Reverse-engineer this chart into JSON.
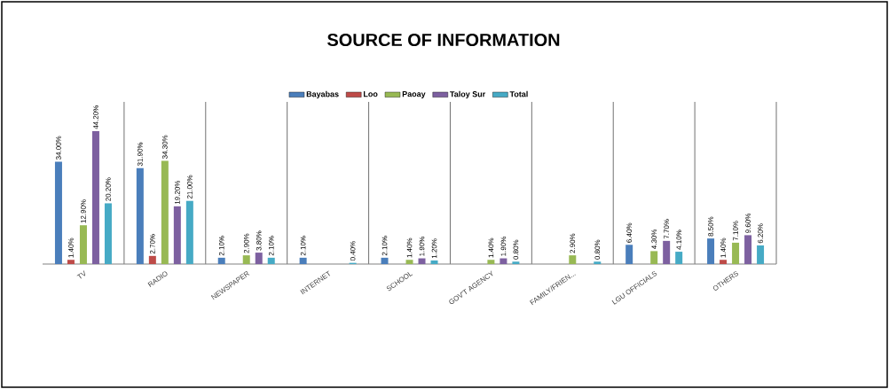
{
  "chart_data": {
    "type": "bar",
    "title": "SOURCE OF INFORMATION",
    "categories": [
      "TV",
      "RADIO",
      "NEWSPAPER",
      "INTERNET",
      "SCHOOL",
      "GOV'T AGENCY",
      "FAMILY/FRIEN...",
      "LGU OFFICIALS",
      "OTHERS"
    ],
    "series": [
      {
        "name": "Bayabas",
        "color": "#4a7ebb",
        "values": [
          34.0,
          31.9,
          2.1,
          2.1,
          2.1,
          null,
          null,
          6.4,
          8.5
        ],
        "value_labels": [
          "34.00%",
          "31.90%",
          "2.10%",
          "2.10%",
          "2.10%",
          null,
          null,
          "6.40%",
          "8.50%"
        ]
      },
      {
        "name": "Loo",
        "color": "#be4b48",
        "values": [
          1.4,
          2.7,
          null,
          null,
          null,
          null,
          null,
          null,
          1.4
        ],
        "value_labels": [
          "1.40%",
          "2.70%",
          null,
          null,
          null,
          null,
          null,
          null,
          "1.40%"
        ]
      },
      {
        "name": "Paoay",
        "color": "#98b954",
        "values": [
          12.9,
          34.3,
          2.9,
          null,
          1.4,
          1.4,
          2.9,
          4.3,
          7.1
        ],
        "value_labels": [
          "12.90%",
          "34.30%",
          "2.90%",
          null,
          "1.40%",
          "1.40%",
          "2.90%",
          "4.30%",
          "7.10%"
        ]
      },
      {
        "name": "Taloy Sur",
        "color": "#7d60a0",
        "values": [
          44.2,
          19.2,
          3.8,
          null,
          1.9,
          1.9,
          null,
          7.7,
          9.6
        ],
        "value_labels": [
          "44.20%",
          "19.20%",
          "3.80%",
          null,
          "1.90%",
          "1.90%",
          null,
          "7.70%",
          "9.60%"
        ]
      },
      {
        "name": "Total",
        "color": "#46aac5",
        "values": [
          20.2,
          21.0,
          2.1,
          0.4,
          1.2,
          0.8,
          0.8,
          4.1,
          6.2
        ],
        "value_labels": [
          "20.20%",
          "21.00%",
          "2.10%",
          "0.40%",
          "1.20%",
          "0.80%",
          "0.80%",
          "4.10%",
          "6.20%"
        ]
      }
    ],
    "grid": "x",
    "legend": "top"
  }
}
